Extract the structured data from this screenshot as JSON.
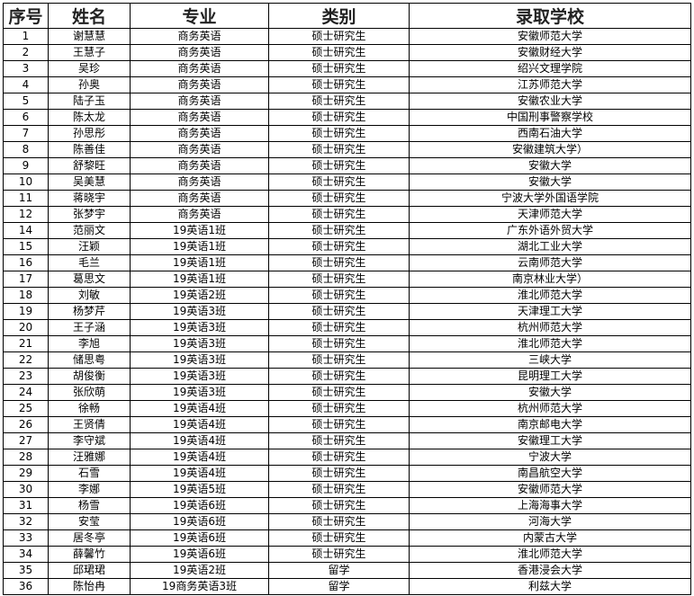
{
  "headers": [
    "序号",
    "姓名",
    "专业",
    "类别",
    "录取学校"
  ],
  "rows": [
    [
      "1",
      "谢慧慧",
      "商务英语",
      "硕士研究生",
      "安徽师范大学"
    ],
    [
      "2",
      "王慧子",
      "商务英语",
      "硕士研究生",
      "安徽财经大学"
    ],
    [
      "3",
      "吴珍",
      "商务英语",
      "硕士研究生",
      "绍兴文理学院"
    ],
    [
      "4",
      "孙奥",
      "商务英语",
      "硕士研究生",
      "江苏师范大学"
    ],
    [
      "5",
      "陆子玉",
      "商务英语",
      "硕士研究生",
      "安徽农业大学"
    ],
    [
      "6",
      "陈太龙",
      "商务英语",
      "硕士研究生",
      "中国刑事警察学校"
    ],
    [
      "7",
      "孙思彤",
      "商务英语",
      "硕士研究生",
      "西南石油大学"
    ],
    [
      "8",
      "陈善佳",
      "商务英语",
      "硕士研究生",
      "安徽建筑大学）"
    ],
    [
      "9",
      "舒黎旺",
      "商务英语",
      "硕士研究生",
      "安徽大学"
    ],
    [
      "10",
      "吴美慧",
      "商务英语",
      "硕士研究生",
      "安徽大学"
    ],
    [
      "11",
      "蒋晓宇",
      "商务英语",
      "硕士研究生",
      "宁波大学外国语学院"
    ],
    [
      "12",
      "张梦宇",
      "商务英语",
      "硕士研究生",
      "天津师范大学"
    ],
    [
      "14",
      "范丽文",
      "19英语1班",
      "硕士研究生",
      "广东外语外贸大学"
    ],
    [
      "15",
      "汪颖",
      "19英语1班",
      "硕士研究生",
      "湖北工业大学"
    ],
    [
      "16",
      "毛兰",
      "19英语1班",
      "硕士研究生",
      "云南师范大学"
    ],
    [
      "17",
      "葛思文",
      "19英语1班",
      "硕士研究生",
      "南京林业大学）"
    ],
    [
      "18",
      "刘敏",
      "19英语2班",
      "硕士研究生",
      "淮北师范大学"
    ],
    [
      "19",
      "杨梦芹",
      "19英语3班",
      "硕士研究生",
      "天津理工大学"
    ],
    [
      "20",
      "王子涵",
      "19英语3班",
      "硕士研究生",
      "杭州师范大学"
    ],
    [
      "21",
      "李旭",
      "19英语3班",
      "硕士研究生",
      "淮北师范大学"
    ],
    [
      "22",
      "储思粤",
      "19英语3班",
      "硕士研究生",
      "三峡大学"
    ],
    [
      "23",
      "胡俊衡",
      "19英语3班",
      "硕士研究生",
      "昆明理工大学"
    ],
    [
      "24",
      "张欣萌",
      "19英语3班",
      "硕士研究生",
      "安徽大学"
    ],
    [
      "25",
      "徐畅",
      "19英语4班",
      "硕士研究生",
      "杭州师范大学"
    ],
    [
      "26",
      "王贤倩",
      "19英语4班",
      "硕士研究生",
      "南京邮电大学"
    ],
    [
      "27",
      "李守斌",
      "19英语4班",
      "硕士研究生",
      "安徽理工大学"
    ],
    [
      "28",
      "汪雅娜",
      "19英语4班",
      "硕士研究生",
      "宁波大学"
    ],
    [
      "29",
      "石雪",
      "19英语4班",
      "硕士研究生",
      "南昌航空大学"
    ],
    [
      "30",
      "李娜",
      "19英语5班",
      "硕士研究生",
      "安徽师范大学"
    ],
    [
      "31",
      "杨雪",
      "19英语6班",
      "硕士研究生",
      "上海海事大学"
    ],
    [
      "32",
      "安莹",
      "19英语6班",
      "硕士研究生",
      "河海大学"
    ],
    [
      "33",
      "居冬亭",
      "19英语6班",
      "硕士研究生",
      "内蒙古大学"
    ],
    [
      "34",
      "薛馨竹",
      "19英语6班",
      "硕士研究生",
      "淮北师范大学"
    ],
    [
      "35",
      "邱珺珺",
      "19英语2班",
      "留学",
      "香港浸会大学"
    ],
    [
      "36",
      "陈怡冉",
      "19商务英语3班",
      "留学",
      "利兹大学"
    ]
  ]
}
